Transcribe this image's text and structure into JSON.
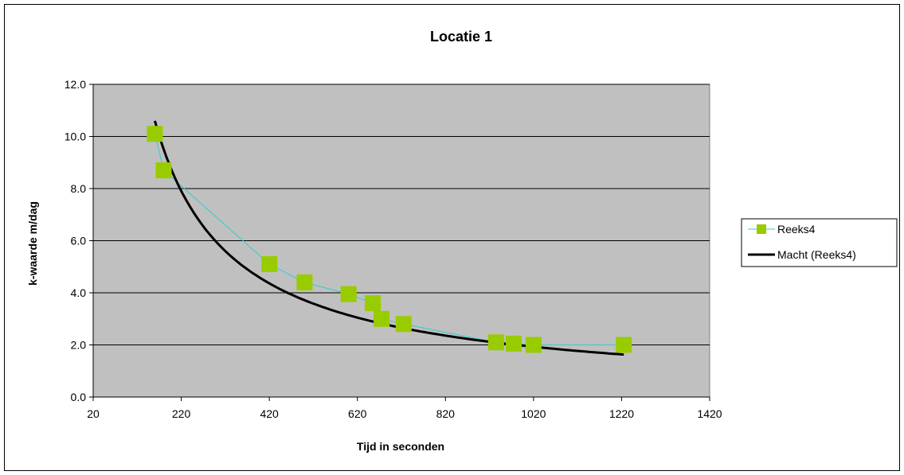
{
  "chart_data": {
    "type": "scatter",
    "title": "Locatie 1",
    "xlabel": "Tijd in seconden",
    "ylabel": "k-waarde m/dag",
    "xlim": [
      20,
      1420
    ],
    "ylim": [
      0,
      12
    ],
    "x_ticks": [
      "20",
      "220",
      "420",
      "620",
      "820",
      "1020",
      "1220",
      "1420"
    ],
    "y_ticks": [
      "0.0",
      "2.0",
      "4.0",
      "6.0",
      "8.0",
      "10.0",
      "12.0"
    ],
    "grid": true,
    "legend_position": "right",
    "plot_background": "#c0c0c0",
    "series": [
      {
        "name": "Reeks4",
        "kind": "scatter-line",
        "marker": "square",
        "marker_color": "#99cc00",
        "line_color": "#33cccc",
        "x": [
          160,
          180,
          420,
          500,
          600,
          655,
          675,
          725,
          935,
          975,
          1020,
          1225
        ],
        "y": [
          10.1,
          8.7,
          5.1,
          4.4,
          3.95,
          3.6,
          3.0,
          2.8,
          2.1,
          2.05,
          2.0,
          2.0
        ]
      },
      {
        "name": "Macht (Reeks4)",
        "kind": "trendline-power",
        "line_color": "#000000",
        "coef_a": 1130,
        "exponent": -0.92,
        "x_range": [
          160,
          1225
        ]
      }
    ]
  }
}
